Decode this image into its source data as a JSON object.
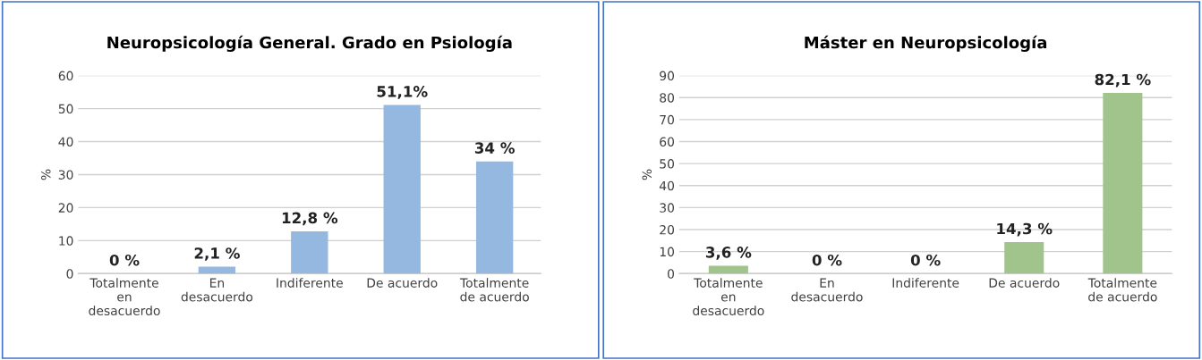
{
  "chart_data": [
    {
      "type": "bar",
      "title": "Neuropsicología General. Grado en Psiología",
      "ylabel": "%",
      "categories": [
        "Totalmente\nen\ndesacuerdo",
        "En\ndesacuerdo",
        "Indiferente",
        "De acuerdo",
        "Totalmente\nde acuerdo"
      ],
      "values": [
        0,
        2.1,
        12.8,
        51.1,
        34
      ],
      "color": "#95b8e0",
      "value_labels": [
        "0 %",
        "2,1 %",
        "12,8 %",
        "51,1%",
        "34 %"
      ],
      "ylim": [
        0,
        60
      ],
      "yticks": [
        0,
        10,
        20,
        30,
        40,
        50,
        60
      ],
      "grid": "y",
      "legend": false
    },
    {
      "type": "bar",
      "title": "Máster en Neuropsicología",
      "ylabel": "%",
      "categories": [
        "Totalmente\nen\ndesacuerdo",
        "En\ndesacuerdo",
        "Indiferente",
        "De acuerdo",
        "Totalmente\nde acuerdo"
      ],
      "values": [
        3.6,
        0,
        0,
        14.3,
        82.1
      ],
      "color": "#a1c48c",
      "value_labels": [
        "3,6 %",
        "0 %",
        "0 %",
        "14,3 %",
        "82,1 %"
      ],
      "ylim": [
        0,
        90
      ],
      "yticks": [
        0,
        10,
        20,
        30,
        40,
        50,
        60,
        70,
        80,
        90
      ],
      "grid": "y",
      "legend": false
    }
  ]
}
